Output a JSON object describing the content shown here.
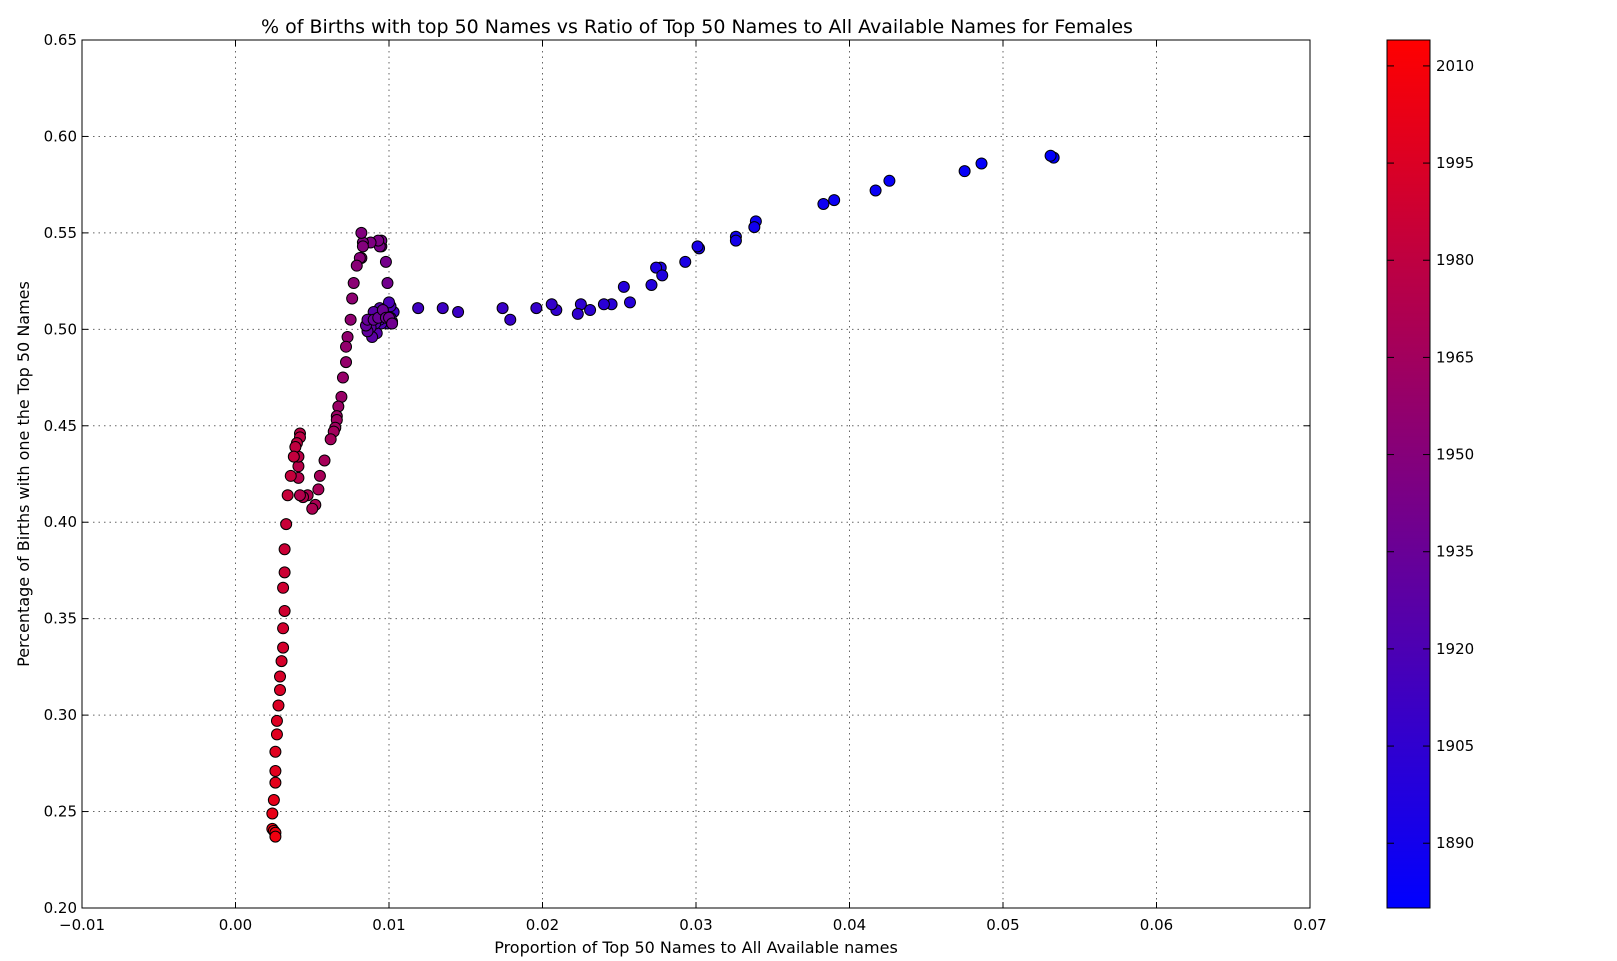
{
  "chart_data": {
    "type": "scatter",
    "title": "% of Births with top 50 Names vs Ratio of Top 50 Names to All Available Names for Females",
    "xlabel": "Proportion of Top 50 Names to All Available names",
    "ylabel": "Percentage of Births with one the Top 50 Names",
    "xlim": [
      -0.01,
      0.07
    ],
    "ylim": [
      0.2,
      0.65
    ],
    "xticks": [
      -0.01,
      0.0,
      0.01,
      0.02,
      0.03,
      0.04,
      0.05,
      0.06,
      0.07
    ],
    "xtick_labels": [
      "−0.01",
      "0.00",
      "0.01",
      "0.02",
      "0.03",
      "0.04",
      "0.05",
      "0.06",
      "0.07"
    ],
    "yticks": [
      0.2,
      0.25,
      0.3,
      0.35,
      0.4,
      0.45,
      0.5,
      0.55,
      0.6,
      0.65
    ],
    "ytick_labels": [
      "0.20",
      "0.25",
      "0.30",
      "0.35",
      "0.40",
      "0.45",
      "0.50",
      "0.55",
      "0.60",
      "0.65"
    ],
    "grid": true,
    "colorbar": {
      "range": [
        1880,
        2014
      ],
      "ticks": [
        1890,
        1905,
        1920,
        1935,
        1950,
        1965,
        1980,
        1995,
        2010
      ],
      "tick_labels": [
        "1890",
        "1905",
        "1920",
        "1935",
        "1950",
        "1965",
        "1980",
        "1995",
        "2010"
      ],
      "color_min": "#0000ff",
      "color_max": "#ff0000"
    },
    "points": [
      [
        0.0533,
        0.589,
        1880
      ],
      [
        0.0531,
        0.59,
        1881
      ],
      [
        0.0486,
        0.586,
        1882
      ],
      [
        0.0475,
        0.582,
        1883
      ],
      [
        0.0426,
        0.577,
        1884
      ],
      [
        0.0417,
        0.572,
        1885
      ],
      [
        0.039,
        0.567,
        1886
      ],
      [
        0.0383,
        0.565,
        1887
      ],
      [
        0.0339,
        0.556,
        1888
      ],
      [
        0.0338,
        0.553,
        1889
      ],
      [
        0.0326,
        0.548,
        1890
      ],
      [
        0.0326,
        0.546,
        1891
      ],
      [
        0.0302,
        0.542,
        1892
      ],
      [
        0.0301,
        0.543,
        1893
      ],
      [
        0.0293,
        0.535,
        1894
      ],
      [
        0.0277,
        0.532,
        1895
      ],
      [
        0.0274,
        0.532,
        1896
      ],
      [
        0.0278,
        0.528,
        1897
      ],
      [
        0.0271,
        0.523,
        1898
      ],
      [
        0.0253,
        0.522,
        1899
      ],
      [
        0.0257,
        0.514,
        1900
      ],
      [
        0.0245,
        0.513,
        1901
      ],
      [
        0.024,
        0.513,
        1902
      ],
      [
        0.0231,
        0.51,
        1903
      ],
      [
        0.0225,
        0.513,
        1904
      ],
      [
        0.0223,
        0.508,
        1905
      ],
      [
        0.0209,
        0.51,
        1906
      ],
      [
        0.0206,
        0.513,
        1907
      ],
      [
        0.0196,
        0.511,
        1908
      ],
      [
        0.0179,
        0.505,
        1909
      ],
      [
        0.0174,
        0.511,
        1910
      ],
      [
        0.0145,
        0.509,
        1911
      ],
      [
        0.0135,
        0.511,
        1912
      ],
      [
        0.0119,
        0.511,
        1913
      ],
      [
        0.0103,
        0.509,
        1914
      ],
      [
        0.0102,
        0.504,
        1915
      ],
      [
        0.0101,
        0.506,
        1916
      ],
      [
        0.0099,
        0.503,
        1917
      ],
      [
        0.0101,
        0.512,
        1918
      ],
      [
        0.01,
        0.514,
        1919
      ],
      [
        0.0097,
        0.507,
        1920
      ],
      [
        0.0095,
        0.503,
        1921
      ],
      [
        0.0094,
        0.505,
        1922
      ],
      [
        0.0094,
        0.511,
        1923
      ],
      [
        0.0093,
        0.506,
        1924
      ],
      [
        0.0092,
        0.498,
        1925
      ],
      [
        0.0091,
        0.503,
        1926
      ],
      [
        0.009,
        0.509,
        1927
      ],
      [
        0.0089,
        0.496,
        1928
      ],
      [
        0.0088,
        0.501,
        1929
      ],
      [
        0.0087,
        0.505,
        1930
      ],
      [
        0.0086,
        0.499,
        1931
      ],
      [
        0.0085,
        0.502,
        1932
      ],
      [
        0.0086,
        0.505,
        1933
      ],
      [
        0.009,
        0.505,
        1934
      ],
      [
        0.0093,
        0.506,
        1935
      ],
      [
        0.0096,
        0.51,
        1936
      ],
      [
        0.0098,
        0.506,
        1937
      ],
      [
        0.01,
        0.506,
        1938
      ],
      [
        0.0102,
        0.503,
        1939
      ],
      [
        0.0099,
        0.524,
        1940
      ],
      [
        0.0098,
        0.535,
        1941
      ],
      [
        0.0095,
        0.543,
        1942
      ],
      [
        0.0095,
        0.546,
        1943
      ],
      [
        0.0094,
        0.543,
        1944
      ],
      [
        0.0093,
        0.546,
        1945
      ],
      [
        0.0088,
        0.545,
        1946
      ],
      [
        0.0083,
        0.545,
        1947
      ],
      [
        0.0082,
        0.55,
        1948
      ],
      [
        0.0083,
        0.543,
        1949
      ],
      [
        0.0082,
        0.537,
        1950
      ],
      [
        0.0081,
        0.537,
        1951
      ],
      [
        0.0079,
        0.533,
        1952
      ],
      [
        0.0077,
        0.524,
        1953
      ],
      [
        0.0076,
        0.516,
        1954
      ],
      [
        0.0075,
        0.505,
        1955
      ],
      [
        0.0073,
        0.496,
        1956
      ],
      [
        0.0072,
        0.491,
        1957
      ],
      [
        0.0072,
        0.483,
        1958
      ],
      [
        0.007,
        0.475,
        1959
      ],
      [
        0.0069,
        0.465,
        1960
      ],
      [
        0.0067,
        0.46,
        1961
      ],
      [
        0.0066,
        0.455,
        1962
      ],
      [
        0.0066,
        0.453,
        1963
      ],
      [
        0.0065,
        0.449,
        1964
      ],
      [
        0.0064,
        0.447,
        1965
      ],
      [
        0.0062,
        0.443,
        1966
      ],
      [
        0.0058,
        0.432,
        1967
      ],
      [
        0.0055,
        0.424,
        1968
      ],
      [
        0.0054,
        0.417,
        1969
      ],
      [
        0.0052,
        0.409,
        1970
      ],
      [
        0.005,
        0.407,
        1971
      ],
      [
        0.0047,
        0.414,
        1972
      ],
      [
        0.0044,
        0.413,
        1973
      ],
      [
        0.0042,
        0.414,
        1974
      ],
      [
        0.0041,
        0.423,
        1975
      ],
      [
        0.0041,
        0.429,
        1976
      ],
      [
        0.0041,
        0.434,
        1977
      ],
      [
        0.0042,
        0.446,
        1978
      ],
      [
        0.0042,
        0.444,
        1979
      ],
      [
        0.004,
        0.441,
        1980
      ],
      [
        0.0039,
        0.439,
        1981
      ],
      [
        0.0038,
        0.434,
        1982
      ],
      [
        0.0036,
        0.424,
        1983
      ],
      [
        0.0034,
        0.414,
        1984
      ],
      [
        0.0033,
        0.399,
        1985
      ],
      [
        0.0032,
        0.386,
        1986
      ],
      [
        0.0032,
        0.374,
        1987
      ],
      [
        0.0031,
        0.366,
        1988
      ],
      [
        0.0032,
        0.354,
        1989
      ],
      [
        0.0031,
        0.345,
        1990
      ],
      [
        0.0031,
        0.335,
        1991
      ],
      [
        0.003,
        0.328,
        1992
      ],
      [
        0.0029,
        0.32,
        1993
      ],
      [
        0.0029,
        0.313,
        1994
      ],
      [
        0.0028,
        0.305,
        1995
      ],
      [
        0.0027,
        0.297,
        1996
      ],
      [
        0.0027,
        0.29,
        1997
      ],
      [
        0.0026,
        0.281,
        1998
      ],
      [
        0.0026,
        0.271,
        1999
      ],
      [
        0.0026,
        0.265,
        2000
      ],
      [
        0.0025,
        0.256,
        2001
      ],
      [
        0.0024,
        0.249,
        2002
      ],
      [
        0.0024,
        0.241,
        2003
      ],
      [
        0.0025,
        0.24,
        2004
      ],
      [
        0.0026,
        0.239,
        2005
      ],
      [
        0.0026,
        0.237,
        2006
      ]
    ]
  }
}
